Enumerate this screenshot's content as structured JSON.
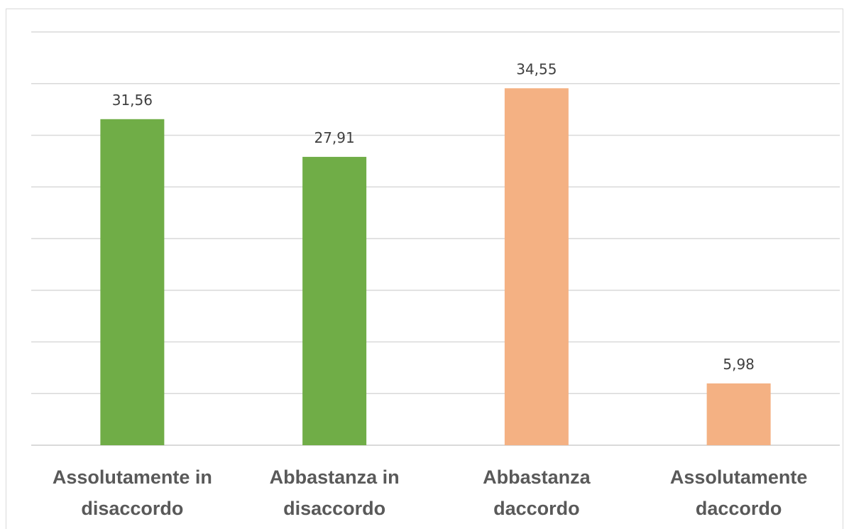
{
  "chart_data": {
    "type": "bar",
    "categories": [
      [
        "Assolutamente in",
        "disaccordo"
      ],
      [
        "Abbastanza in",
        "disaccordo"
      ],
      [
        "Abbastanza",
        "daccordo"
      ],
      [
        "Assolutamente",
        "daccordo"
      ]
    ],
    "values": [
      31.56,
      27.91,
      34.55,
      5.98
    ],
    "value_labels": [
      "31,56",
      "27,91",
      "34,55",
      "5,98"
    ],
    "colors": [
      "#70ad47",
      "#70ad47",
      "#f4b183",
      "#f4b183"
    ],
    "ylim": [
      0,
      40
    ],
    "gridlines": true,
    "legend": "none"
  }
}
